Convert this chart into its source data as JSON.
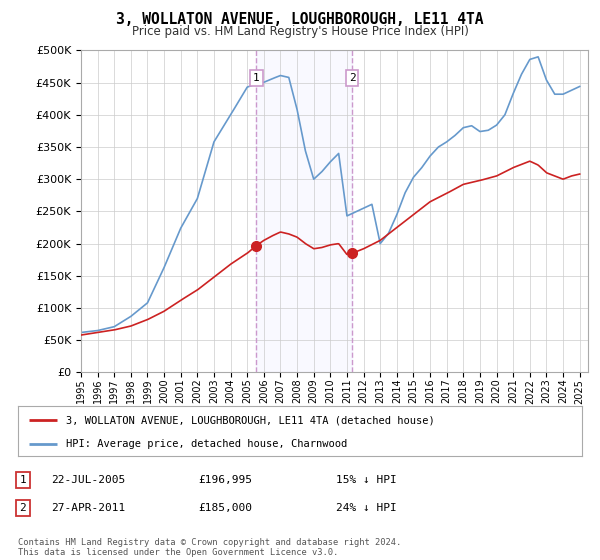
{
  "title": "3, WOLLATON AVENUE, LOUGHBOROUGH, LE11 4TA",
  "subtitle": "Price paid vs. HM Land Registry's House Price Index (HPI)",
  "xlim_start": 1995.0,
  "xlim_end": 2025.5,
  "ylim": [
    0,
    500000
  ],
  "yticks": [
    0,
    50000,
    100000,
    150000,
    200000,
    250000,
    300000,
    350000,
    400000,
    450000,
    500000
  ],
  "background_color": "#ffffff",
  "plot_bg_color": "#ffffff",
  "grid_color": "#cccccc",
  "hpi_color": "#6699cc",
  "price_color": "#cc2222",
  "marker1_x": 2005.55,
  "marker1_y": 196995,
  "marker2_x": 2011.32,
  "marker2_y": 185000,
  "vline1_x": 2005.55,
  "vline2_x": 2011.32,
  "vline_color": "#cc99cc",
  "legend_label_price": "3, WOLLATON AVENUE, LOUGHBOROUGH, LE11 4TA (detached house)",
  "legend_label_hpi": "HPI: Average price, detached house, Charnwood",
  "table_rows": [
    {
      "num": "1",
      "date": "22-JUL-2005",
      "price": "£196,995",
      "hpi": "15% ↓ HPI"
    },
    {
      "num": "2",
      "date": "27-APR-2011",
      "price": "£185,000",
      "hpi": "24% ↓ HPI"
    }
  ],
  "footer": "Contains HM Land Registry data © Crown copyright and database right 2024.\nThis data is licensed under the Open Government Licence v3.0.",
  "xtick_years": [
    1995,
    1996,
    1997,
    1998,
    1999,
    2000,
    2001,
    2002,
    2003,
    2004,
    2005,
    2006,
    2007,
    2008,
    2009,
    2010,
    2011,
    2012,
    2013,
    2014,
    2015,
    2016,
    2017,
    2018,
    2019,
    2020,
    2021,
    2022,
    2023,
    2024,
    2025
  ],
  "price_data_x": [
    1995.0,
    2005.55,
    2011.32,
    2024.5
  ],
  "price_data_y": [
    58000,
    196995,
    185000,
    305000
  ]
}
